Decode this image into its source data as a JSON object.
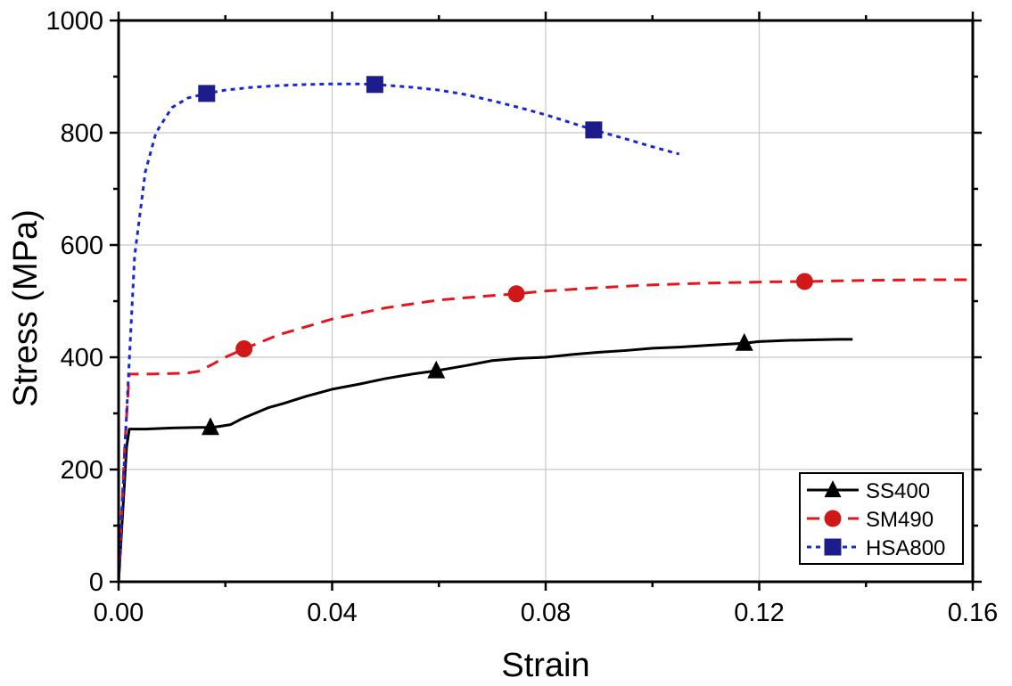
{
  "chart_data": {
    "type": "line",
    "title": "",
    "xlabel": "Strain",
    "ylabel": "Stress (MPa)",
    "xlim": [
      0,
      0.16
    ],
    "ylim": [
      0,
      1000
    ],
    "x_ticks": [
      0,
      0.04,
      0.08,
      0.12,
      0.16
    ],
    "x_tick_labels": [
      "0.00",
      "0.04",
      "0.08",
      "0.12",
      "0.16"
    ],
    "y_ticks": [
      0,
      200,
      400,
      600,
      800,
      1000
    ],
    "y_tick_labels": [
      "0",
      "200",
      "400",
      "600",
      "800",
      "1000"
    ],
    "grid": true,
    "legend_position": "bottom-right",
    "series": [
      {
        "name": "SS400",
        "color": "#000000",
        "line_style": "solid",
        "marker": "triangle",
        "x": [
          0,
          0.0015,
          0.002,
          0.005,
          0.01,
          0.015,
          0.0175,
          0.019,
          0.021,
          0.023,
          0.025,
          0.028,
          0.031,
          0.035,
          0.04,
          0.045,
          0.05,
          0.055,
          0.0595,
          0.065,
          0.07,
          0.075,
          0.08,
          0.085,
          0.09,
          0.095,
          0.1,
          0.105,
          0.11,
          0.1172,
          0.12,
          0.125,
          0.13,
          0.135,
          0.1375
        ],
        "y": [
          0,
          240,
          272,
          272,
          274,
          275,
          275,
          277,
          280,
          290,
          298,
          310,
          318,
          330,
          343,
          352,
          362,
          370,
          376,
          385,
          394,
          398,
          400,
          405,
          409,
          412,
          416,
          418,
          421,
          425,
          428,
          430,
          431,
          432,
          432
        ],
        "marker_x": [
          0.0172,
          0.0595,
          0.1172
        ],
        "marker_y": [
          275,
          376,
          425
        ]
      },
      {
        "name": "SM490",
        "color": "#e8141c",
        "line_style": "dashed",
        "marker": "circle",
        "x": [
          0,
          0.0012,
          0.002,
          0.005,
          0.01,
          0.013,
          0.015,
          0.0175,
          0.02,
          0.0235,
          0.03,
          0.04,
          0.05,
          0.06,
          0.07,
          0.0745,
          0.08,
          0.09,
          0.1,
          0.11,
          0.12,
          0.1285,
          0.14,
          0.15,
          0.16
        ],
        "y": [
          0,
          250,
          370,
          370,
          371,
          372,
          375,
          387,
          400,
          415,
          440,
          468,
          488,
          502,
          510,
          513,
          518,
          524,
          529,
          532,
          534,
          535,
          537,
          538,
          538
        ],
        "marker_x": [
          0.0235,
          0.0745,
          0.1285
        ],
        "marker_y": [
          415,
          513,
          535
        ]
      },
      {
        "name": "HSA800",
        "color": "#1428d8",
        "line_style": "dotted",
        "marker": "square",
        "x": [
          0,
          0.0015,
          0.003,
          0.005,
          0.007,
          0.01,
          0.013,
          0.0165,
          0.02,
          0.025,
          0.03,
          0.035,
          0.04,
          0.045,
          0.048,
          0.055,
          0.06,
          0.065,
          0.07,
          0.075,
          0.08,
          0.085,
          0.089,
          0.095,
          0.1,
          0.105
        ],
        "y": [
          0,
          300,
          580,
          730,
          800,
          845,
          862,
          870,
          876,
          881,
          884,
          886,
          887,
          887,
          886,
          881,
          876,
          868,
          857,
          845,
          832,
          817,
          805,
          789,
          775,
          762
        ],
        "marker_x": [
          0.0165,
          0.048,
          0.089
        ],
        "marker_y": [
          870,
          886,
          805
        ]
      }
    ]
  }
}
